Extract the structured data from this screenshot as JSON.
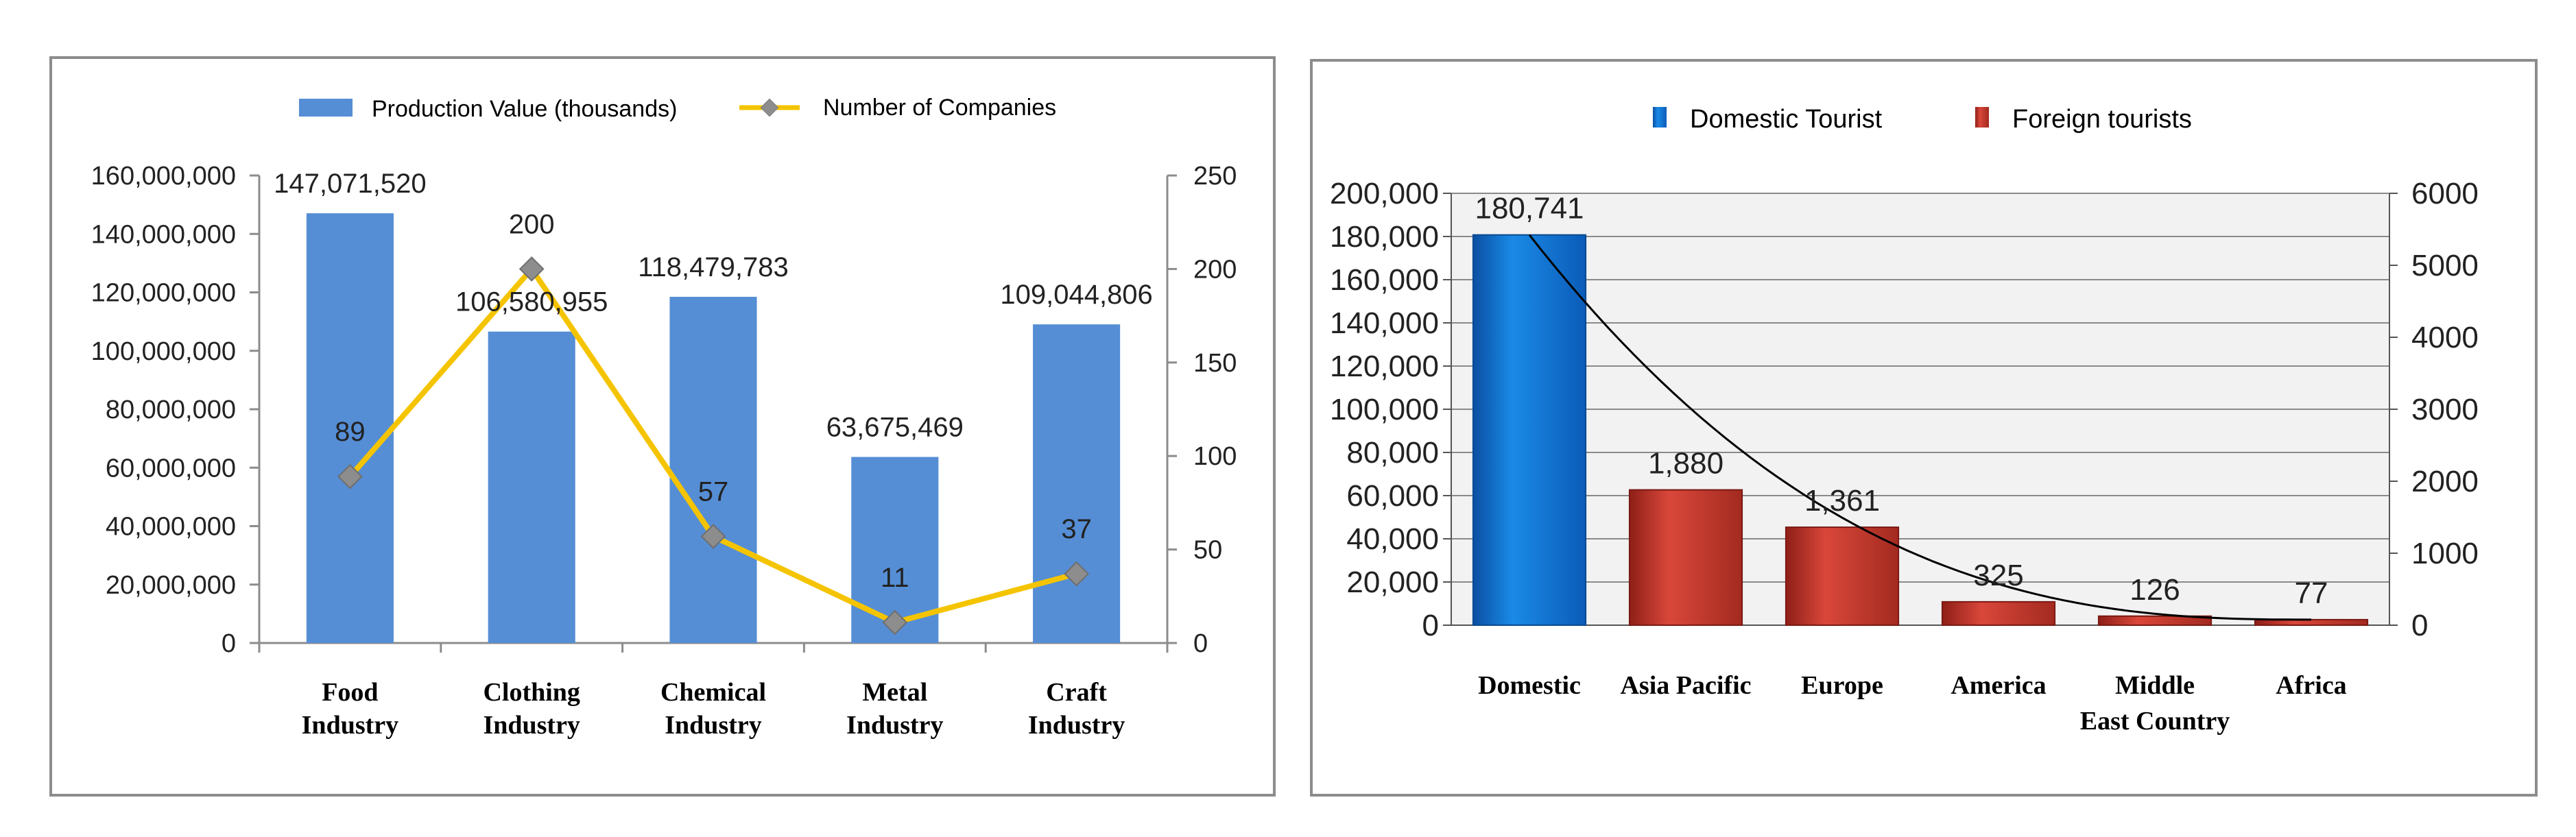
{
  "chart_data": [
    {
      "type": "bar+line",
      "title": "",
      "categories": [
        "Food\nIndustry",
        "Clothing\nIndustry",
        "Chemical\nIndustry",
        "Metal\nIndustry",
        "Craft\nIndustry"
      ],
      "series": [
        {
          "name": "Production Value (thousands)",
          "type": "bar",
          "axis": "left",
          "color": "#558ed5",
          "values": [
            147071520,
            106580955,
            118479783,
            63675469,
            109044806
          ],
          "labels": [
            "147,071,520",
            "106,580,955",
            "118,479,783",
            "63,675,469",
            "109,044,806"
          ]
        },
        {
          "name": "Number of Companies",
          "type": "line",
          "axis": "right",
          "color": "#f5c400",
          "marker_color": "#8d8d8d",
          "values": [
            89,
            200,
            57,
            11,
            37
          ],
          "labels": [
            "89",
            "200",
            "57",
            "11",
            "37"
          ]
        }
      ],
      "y_left": {
        "ylim": [
          0,
          160000000
        ],
        "ticks": [
          "0",
          "20,000,000",
          "40,000,000",
          "60,000,000",
          "80,000,000",
          "100,000,000",
          "120,000,000",
          "140,000,000",
          "160,000,000"
        ]
      },
      "y_right": {
        "ylim": [
          0,
          250
        ],
        "ticks": [
          "0",
          "50",
          "100",
          "150",
          "200",
          "250"
        ]
      },
      "grid": false,
      "legend": "top-center"
    },
    {
      "type": "bar",
      "title": "",
      "categories": [
        "Domestic",
        "Asia Pacific",
        "Europe",
        "America",
        "Middle\nEast Country",
        "Africa"
      ],
      "series": [
        {
          "name": "Domestic Tourist",
          "axis": "left",
          "color": "#0070c8",
          "values": [
            180741,
            null,
            null,
            null,
            null,
            null
          ],
          "labels": [
            "180,741",
            "",
            "",
            "",
            "",
            ""
          ]
        },
        {
          "name": "Foreign tourists",
          "axis": "right",
          "color": "#c0392b",
          "values": [
            null,
            1880,
            1361,
            325,
            126,
            77
          ],
          "labels": [
            "",
            "1,880",
            "1,361",
            "325",
            "126",
            "77"
          ]
        }
      ],
      "trendline": {
        "type": "power",
        "color": "#000000"
      },
      "y_left": {
        "ylim": [
          0,
          200000
        ],
        "ticks": [
          "0",
          "20,000",
          "40,000",
          "60,000",
          "80,000",
          "100,000",
          "120,000",
          "140,000",
          "160,000",
          "180,000",
          "200,000"
        ]
      },
      "y_right": {
        "ylim": [
          0,
          6000
        ],
        "ticks": [
          "0",
          "1000",
          "2000",
          "3000",
          "4000",
          "5000",
          "6000"
        ]
      },
      "grid": true,
      "legend": "top-center",
      "plot_background": "#f2f2f2"
    }
  ]
}
